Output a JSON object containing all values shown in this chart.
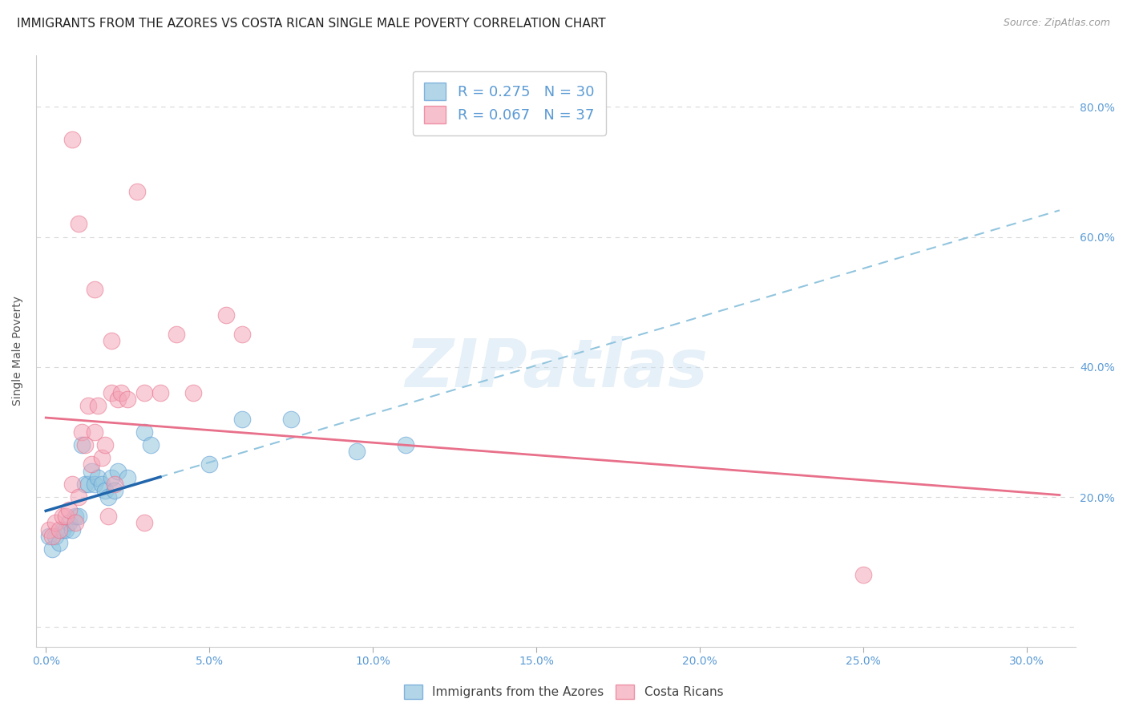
{
  "title": "IMMIGRANTS FROM THE AZORES VS COSTA RICAN SINGLE MALE POVERTY CORRELATION CHART",
  "source": "Source: ZipAtlas.com",
  "ylabel": "Single Male Poverty",
  "x_tick_labels": [
    "0.0%",
    "5.0%",
    "10.0%",
    "15.0%",
    "20.0%",
    "25.0%",
    "30.0%"
  ],
  "x_tick_vals": [
    0.0,
    5.0,
    10.0,
    15.0,
    20.0,
    25.0,
    30.0
  ],
  "y_tick_labels": [
    "",
    "20.0%",
    "40.0%",
    "60.0%",
    "80.0%"
  ],
  "y_tick_vals": [
    0.0,
    20.0,
    40.0,
    60.0,
    80.0
  ],
  "xlim": [
    -0.3,
    31.5
  ],
  "ylim": [
    -3.0,
    88.0
  ],
  "legend_label1": "Immigrants from the Azores",
  "legend_label2": "Costa Ricans",
  "color_blue": "#92c5de",
  "color_pink": "#f4a6b8",
  "color_blue_edge": "#5b9bd5",
  "color_pink_edge": "#e8708a",
  "color_trend_blue_solid": "#2166ac",
  "color_trend_pink_solid": "#e8708a",
  "color_trend_blue_dashed": "#92c5de",
  "blue_x": [
    0.1,
    0.2,
    0.3,
    0.4,
    0.5,
    0.6,
    0.7,
    0.8,
    0.9,
    1.0,
    1.1,
    1.2,
    1.3,
    1.4,
    1.5,
    1.6,
    1.7,
    1.8,
    1.9,
    2.0,
    2.1,
    2.2,
    2.5,
    3.0,
    3.2,
    5.0,
    6.0,
    7.5,
    9.5,
    11.0
  ],
  "blue_y": [
    14.0,
    12.0,
    14.0,
    13.0,
    15.0,
    15.0,
    16.0,
    15.0,
    17.0,
    17.0,
    28.0,
    22.0,
    22.0,
    24.0,
    22.0,
    23.0,
    22.0,
    21.0,
    20.0,
    23.0,
    21.0,
    24.0,
    23.0,
    30.0,
    28.0,
    25.0,
    32.0,
    32.0,
    27.0,
    28.0
  ],
  "pink_x": [
    0.1,
    0.2,
    0.3,
    0.4,
    0.5,
    0.6,
    0.7,
    0.8,
    0.9,
    1.0,
    1.1,
    1.2,
    1.3,
    1.4,
    1.5,
    1.6,
    1.7,
    1.8,
    1.9,
    2.0,
    2.1,
    2.2,
    2.3,
    2.5,
    3.0,
    3.5,
    4.0,
    4.5,
    5.5,
    6.0,
    2.8,
    1.0,
    0.8,
    1.5,
    2.0,
    25.0,
    3.0
  ],
  "pink_y": [
    15.0,
    14.0,
    16.0,
    15.0,
    17.0,
    17.0,
    18.0,
    22.0,
    16.0,
    20.0,
    30.0,
    28.0,
    34.0,
    25.0,
    30.0,
    34.0,
    26.0,
    28.0,
    17.0,
    36.0,
    22.0,
    35.0,
    36.0,
    35.0,
    36.0,
    36.0,
    45.0,
    36.0,
    48.0,
    45.0,
    67.0,
    62.0,
    75.0,
    52.0,
    44.0,
    8.0,
    16.0
  ],
  "watermark_text": "ZIPatlas",
  "background_color": "#ffffff",
  "title_fontsize": 11,
  "axis_label_fontsize": 10,
  "tick_fontsize": 10,
  "right_tick_color": "#5b9bd5",
  "bottom_tick_color": "#5b9bd5",
  "source_color": "#999999",
  "ylabel_color": "#555555",
  "grid_color": "#d8d8d8",
  "legend_text_color": "#5b9bd5",
  "bottom_legend_text_color": "#444444"
}
